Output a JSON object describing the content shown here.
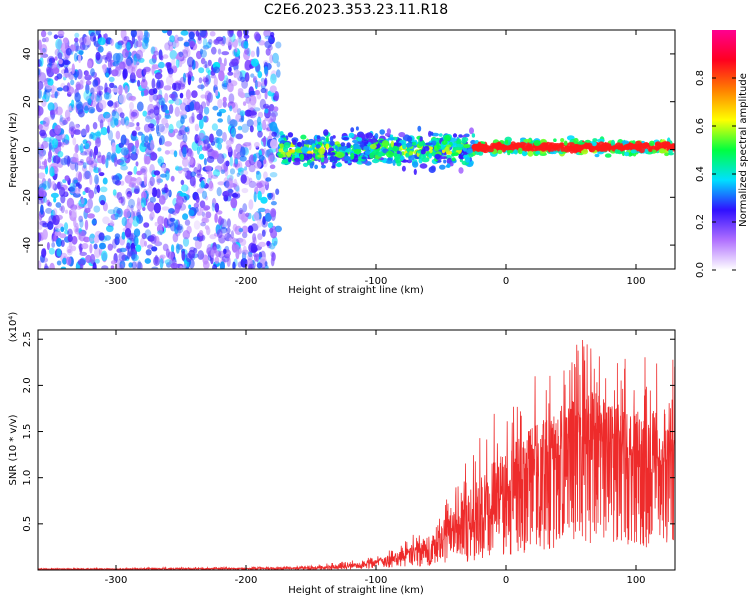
{
  "title": "C2E6.2023.353.23.11.R18",
  "colors": {
    "snr_line": "#ee2b2b",
    "frame": "#000000",
    "background": "#ffffff"
  },
  "chart_data": [
    {
      "type": "heatmap",
      "xlabel": "Height of straight line (km)",
      "ylabel": "Frequency (Hz)",
      "xlim": [
        -360,
        130
      ],
      "ylim": [
        -50,
        50
      ],
      "xticks": [
        -300,
        -200,
        -100,
        0,
        100
      ],
      "yticks": [
        40,
        20,
        0,
        -20,
        -40
      ],
      "colorbar": {
        "label": "Normalized spectral amplitude",
        "range": [
          0,
          1
        ],
        "ticks": [
          0.0,
          0.2,
          0.4,
          0.6,
          0.8
        ],
        "colormap": [
          "#ffffff",
          "#b070ff",
          "#3010ff",
          "#00e0ff",
          "#00ff40",
          "#ffff00",
          "#ff8000",
          "#ff0020",
          "#ff0090"
        ]
      },
      "regions": [
        {
          "x": [
            -360,
            -175
          ],
          "freq_center": 0,
          "freq_halfwidth": 50,
          "amplitude": 0.15,
          "description": "broadband noise"
        },
        {
          "x": [
            -175,
            -25
          ],
          "freq_center": 0,
          "freq_halfwidth": 10,
          "amplitude": 0.5
        },
        {
          "x": [
            -25,
            130
          ],
          "freq_center": 1,
          "freq_halfwidth": 4,
          "amplitude": 0.85
        }
      ]
    },
    {
      "type": "line",
      "xlabel": "Height of straight line (km)",
      "ylabel": "SNR (10 * v/v)",
      "multiplier": "(x10⁴)",
      "xlim": [
        -360,
        130
      ],
      "ylim": [
        0,
        2.6
      ],
      "xticks": [
        -300,
        -200,
        -100,
        0,
        100
      ],
      "yticks": [
        0.5,
        1.0,
        1.5,
        2.0,
        2.5
      ],
      "series": [
        {
          "x": [
            -360,
            -300,
            -250,
            -200,
            -150,
            -120,
            -100,
            -80,
            -60,
            -40,
            -20,
            0,
            20,
            40,
            60,
            80,
            100,
            120,
            130
          ],
          "y_mean": [
            0.01,
            0.01,
            0.012,
            0.015,
            0.02,
            0.04,
            0.08,
            0.13,
            0.22,
            0.4,
            0.55,
            0.78,
            1.0,
            1.2,
            1.4,
            1.38,
            1.2,
            1.1,
            1.3
          ],
          "y_peak": [
            0.02,
            0.02,
            0.03,
            0.03,
            0.05,
            0.1,
            0.15,
            0.28,
            0.55,
            0.9,
            1.5,
            1.9,
            2.1,
            2.3,
            2.6,
            2.3,
            2.3,
            2.4,
            2.45
          ]
        }
      ]
    }
  ]
}
